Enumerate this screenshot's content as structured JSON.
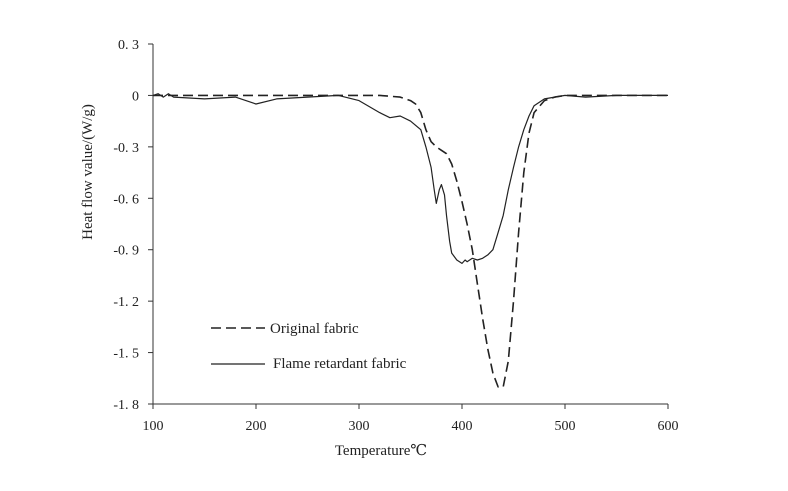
{
  "chart_data": {
    "type": "line",
    "title": "",
    "xlabel": "Temperature℃",
    "ylabel": "Heat flow value/(W/g)",
    "xlim": [
      100,
      600
    ],
    "ylim": [
      -1.8,
      0.3
    ],
    "xticks": [
      100,
      200,
      300,
      400,
      500,
      600
    ],
    "yticks": [
      0.3,
      0,
      -0.3,
      -0.6,
      -0.9,
      -1.2,
      -1.5,
      -1.8
    ],
    "xtick_labels": [
      "100",
      "200",
      "300",
      "400",
      "500",
      "600"
    ],
    "ytick_labels": [
      "0. 3",
      "0",
      "-0. 3",
      "-0. 6",
      "-0. 9",
      "-1. 2",
      "-1. 5",
      "-1. 8"
    ],
    "grid": false,
    "legend_position": "bottom-left",
    "series": [
      {
        "name": "Original fabric",
        "style": "dashed",
        "color": "#222222",
        "x": [
          100,
          120,
          150,
          200,
          250,
          280,
          300,
          320,
          340,
          350,
          355,
          360,
          365,
          370,
          375,
          380,
          385,
          390,
          395,
          400,
          405,
          410,
          415,
          420,
          425,
          430,
          435,
          440,
          445,
          450,
          455,
          460,
          465,
          470,
          480,
          490,
          500,
          520,
          550,
          580,
          600
        ],
        "y": [
          0.0,
          0.0,
          0.0,
          0.0,
          0.0,
          0.0,
          0.0,
          0.0,
          -0.01,
          -0.03,
          -0.05,
          -0.1,
          -0.2,
          -0.27,
          -0.3,
          -0.32,
          -0.34,
          -0.4,
          -0.5,
          -0.62,
          -0.75,
          -0.9,
          -1.1,
          -1.3,
          -1.48,
          -1.62,
          -1.7,
          -1.7,
          -1.55,
          -1.2,
          -0.8,
          -0.45,
          -0.22,
          -0.1,
          -0.03,
          -0.01,
          0.0,
          0.0,
          0.0,
          0.0,
          0.0
        ]
      },
      {
        "name": "Flame retardant fabric",
        "style": "solid",
        "color": "#222222",
        "x": [
          100,
          105,
          110,
          115,
          120,
          150,
          180,
          200,
          220,
          250,
          280,
          300,
          320,
          330,
          340,
          350,
          360,
          365,
          370,
          373,
          375,
          378,
          380,
          383,
          385,
          388,
          390,
          395,
          400,
          403,
          405,
          410,
          415,
          420,
          425,
          430,
          435,
          440,
          445,
          450,
          455,
          460,
          465,
          470,
          480,
          500,
          520,
          550,
          600
        ],
        "y": [
          0.0,
          0.01,
          -0.01,
          0.01,
          -0.01,
          -0.02,
          -0.01,
          -0.05,
          -0.02,
          -0.01,
          0.0,
          -0.03,
          -0.1,
          -0.13,
          -0.12,
          -0.15,
          -0.2,
          -0.3,
          -0.42,
          -0.55,
          -0.63,
          -0.55,
          -0.52,
          -0.58,
          -0.7,
          -0.85,
          -0.92,
          -0.96,
          -0.98,
          -0.96,
          -0.97,
          -0.95,
          -0.96,
          -0.95,
          -0.93,
          -0.9,
          -0.8,
          -0.7,
          -0.55,
          -0.42,
          -0.3,
          -0.2,
          -0.12,
          -0.06,
          -0.02,
          0.0,
          -0.01,
          0.0,
          0.0
        ]
      }
    ]
  }
}
